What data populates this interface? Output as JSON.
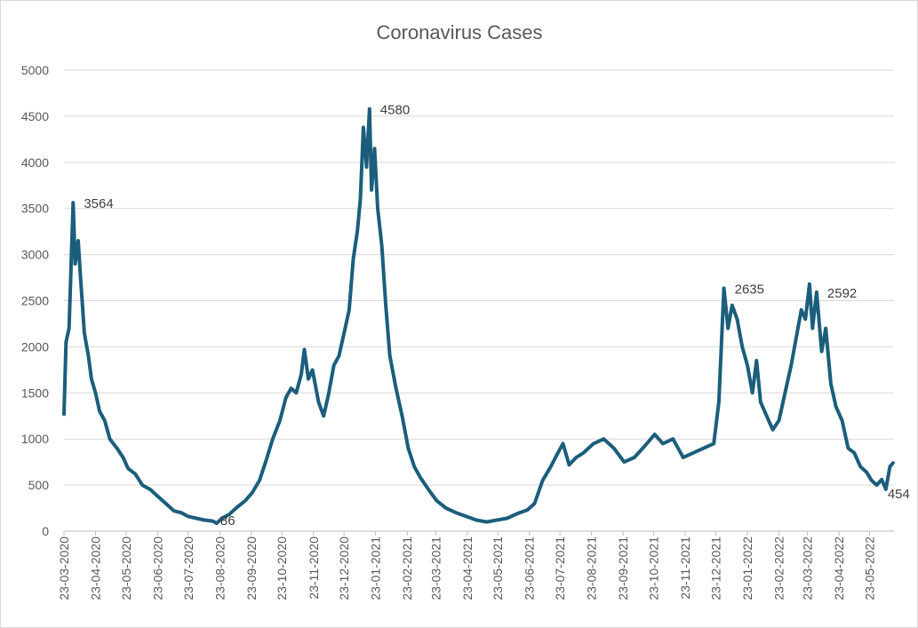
{
  "chart_data": {
    "type": "line",
    "title": "Coronavirus Cases",
    "xlabel": "",
    "ylabel": "",
    "ylim": [
      0,
      5000
    ],
    "yticks": [
      "0",
      "500",
      "1000",
      "1500",
      "2000",
      "2500",
      "3000",
      "3500",
      "4000",
      "4500",
      "5000"
    ],
    "grid": true,
    "legend": "none",
    "x_unit": "days since 23-03-2020",
    "x_range": [
      0,
      815
    ],
    "xtick_labels": [
      "23-03-2020",
      "23-04-2020",
      "23-05-2020",
      "23-06-2020",
      "23-07-2020",
      "23-08-2020",
      "23-09-2020",
      "23-10-2020",
      "23-11-2020",
      "23-12-2020",
      "23-01-2021",
      "23-02-2021",
      "23-03-2021",
      "23-04-2021",
      "23-05-2021",
      "23-06-2021",
      "23-07-2021",
      "23-08-2021",
      "23-09-2021",
      "23-10-2021",
      "23-11-2021",
      "23-12-2021",
      "23-01-2022",
      "23-02-2022",
      "23-03-2022",
      "23-04-2022",
      "23-05-2022"
    ],
    "xtick_days": [
      0,
      31,
      61,
      92,
      122,
      153,
      184,
      214,
      245,
      275,
      306,
      337,
      365,
      396,
      426,
      457,
      487,
      518,
      549,
      579,
      610,
      640,
      671,
      702,
      730,
      761,
      791
    ],
    "series": [
      {
        "name": "Cases",
        "color": "#1b5e7b",
        "points": [
          [
            0,
            1270
          ],
          [
            2,
            2050
          ],
          [
            5,
            2200
          ],
          [
            9,
            3564
          ],
          [
            11,
            2900
          ],
          [
            14,
            3150
          ],
          [
            16,
            2800
          ],
          [
            20,
            2150
          ],
          [
            24,
            1900
          ],
          [
            27,
            1650
          ],
          [
            31,
            1500
          ],
          [
            35,
            1300
          ],
          [
            40,
            1200
          ],
          [
            45,
            1000
          ],
          [
            52,
            900
          ],
          [
            58,
            800
          ],
          [
            63,
            680
          ],
          [
            70,
            620
          ],
          [
            77,
            500
          ],
          [
            85,
            450
          ],
          [
            92,
            380
          ],
          [
            100,
            300
          ],
          [
            108,
            220
          ],
          [
            115,
            200
          ],
          [
            122,
            160
          ],
          [
            130,
            140
          ],
          [
            138,
            120
          ],
          [
            146,
            110
          ],
          [
            150,
            86
          ],
          [
            155,
            140
          ],
          [
            162,
            180
          ],
          [
            170,
            260
          ],
          [
            178,
            330
          ],
          [
            185,
            420
          ],
          [
            192,
            550
          ],
          [
            198,
            750
          ],
          [
            205,
            1000
          ],
          [
            212,
            1200
          ],
          [
            218,
            1450
          ],
          [
            223,
            1550
          ],
          [
            228,
            1500
          ],
          [
            233,
            1700
          ],
          [
            236,
            1970
          ],
          [
            240,
            1650
          ],
          [
            244,
            1750
          ],
          [
            250,
            1400
          ],
          [
            255,
            1250
          ],
          [
            260,
            1500
          ],
          [
            265,
            1800
          ],
          [
            270,
            1900
          ],
          [
            275,
            2150
          ],
          [
            280,
            2400
          ],
          [
            284,
            2950
          ],
          [
            288,
            3250
          ],
          [
            291,
            3600
          ],
          [
            294,
            4380
          ],
          [
            297,
            3950
          ],
          [
            300,
            4580
          ],
          [
            302,
            3700
          ],
          [
            305,
            4150
          ],
          [
            308,
            3500
          ],
          [
            312,
            3100
          ],
          [
            316,
            2450
          ],
          [
            320,
            1900
          ],
          [
            326,
            1550
          ],
          [
            332,
            1250
          ],
          [
            338,
            900
          ],
          [
            344,
            700
          ],
          [
            350,
            580
          ],
          [
            358,
            450
          ],
          [
            366,
            330
          ],
          [
            375,
            250
          ],
          [
            385,
            200
          ],
          [
            395,
            160
          ],
          [
            405,
            120
          ],
          [
            415,
            100
          ],
          [
            425,
            120
          ],
          [
            435,
            140
          ],
          [
            445,
            190
          ],
          [
            455,
            230
          ],
          [
            462,
            300
          ],
          [
            470,
            550
          ],
          [
            478,
            700
          ],
          [
            485,
            850
          ],
          [
            490,
            950
          ],
          [
            496,
            720
          ],
          [
            503,
            800
          ],
          [
            510,
            850
          ],
          [
            520,
            950
          ],
          [
            530,
            1000
          ],
          [
            540,
            900
          ],
          [
            550,
            750
          ],
          [
            560,
            800
          ],
          [
            570,
            920
          ],
          [
            580,
            1050
          ],
          [
            588,
            950
          ],
          [
            598,
            1000
          ],
          [
            608,
            800
          ],
          [
            618,
            850
          ],
          [
            628,
            900
          ],
          [
            638,
            950
          ],
          [
            643,
            1400
          ],
          [
            648,
            2635
          ],
          [
            652,
            2200
          ],
          [
            656,
            2450
          ],
          [
            661,
            2300
          ],
          [
            666,
            2000
          ],
          [
            671,
            1800
          ],
          [
            676,
            1500
          ],
          [
            680,
            1850
          ],
          [
            684,
            1400
          ],
          [
            690,
            1250
          ],
          [
            696,
            1100
          ],
          [
            702,
            1200
          ],
          [
            708,
            1500
          ],
          [
            714,
            1800
          ],
          [
            719,
            2100
          ],
          [
            724,
            2400
          ],
          [
            728,
            2300
          ],
          [
            732,
            2680
          ],
          [
            735,
            2200
          ],
          [
            739,
            2592
          ],
          [
            744,
            1950
          ],
          [
            748,
            2200
          ],
          [
            753,
            1600
          ],
          [
            758,
            1350
          ],
          [
            764,
            1200
          ],
          [
            770,
            900
          ],
          [
            776,
            850
          ],
          [
            782,
            700
          ],
          [
            788,
            640
          ],
          [
            793,
            550
          ],
          [
            798,
            500
          ],
          [
            803,
            560
          ],
          [
            807,
            454
          ],
          [
            811,
            700
          ],
          [
            814,
            740
          ]
        ]
      }
    ],
    "annotations": [
      {
        "day": 9,
        "value": 3564,
        "text": "3564"
      },
      {
        "day": 150,
        "value": 86,
        "text": "86"
      },
      {
        "day": 300,
        "value": 4580,
        "text": "4580"
      },
      {
        "day": 648,
        "value": 2635,
        "text": "2635"
      },
      {
        "day": 739,
        "value": 2592,
        "text": "2592"
      },
      {
        "day": 807,
        "value": 454,
        "text": "454"
      }
    ]
  }
}
